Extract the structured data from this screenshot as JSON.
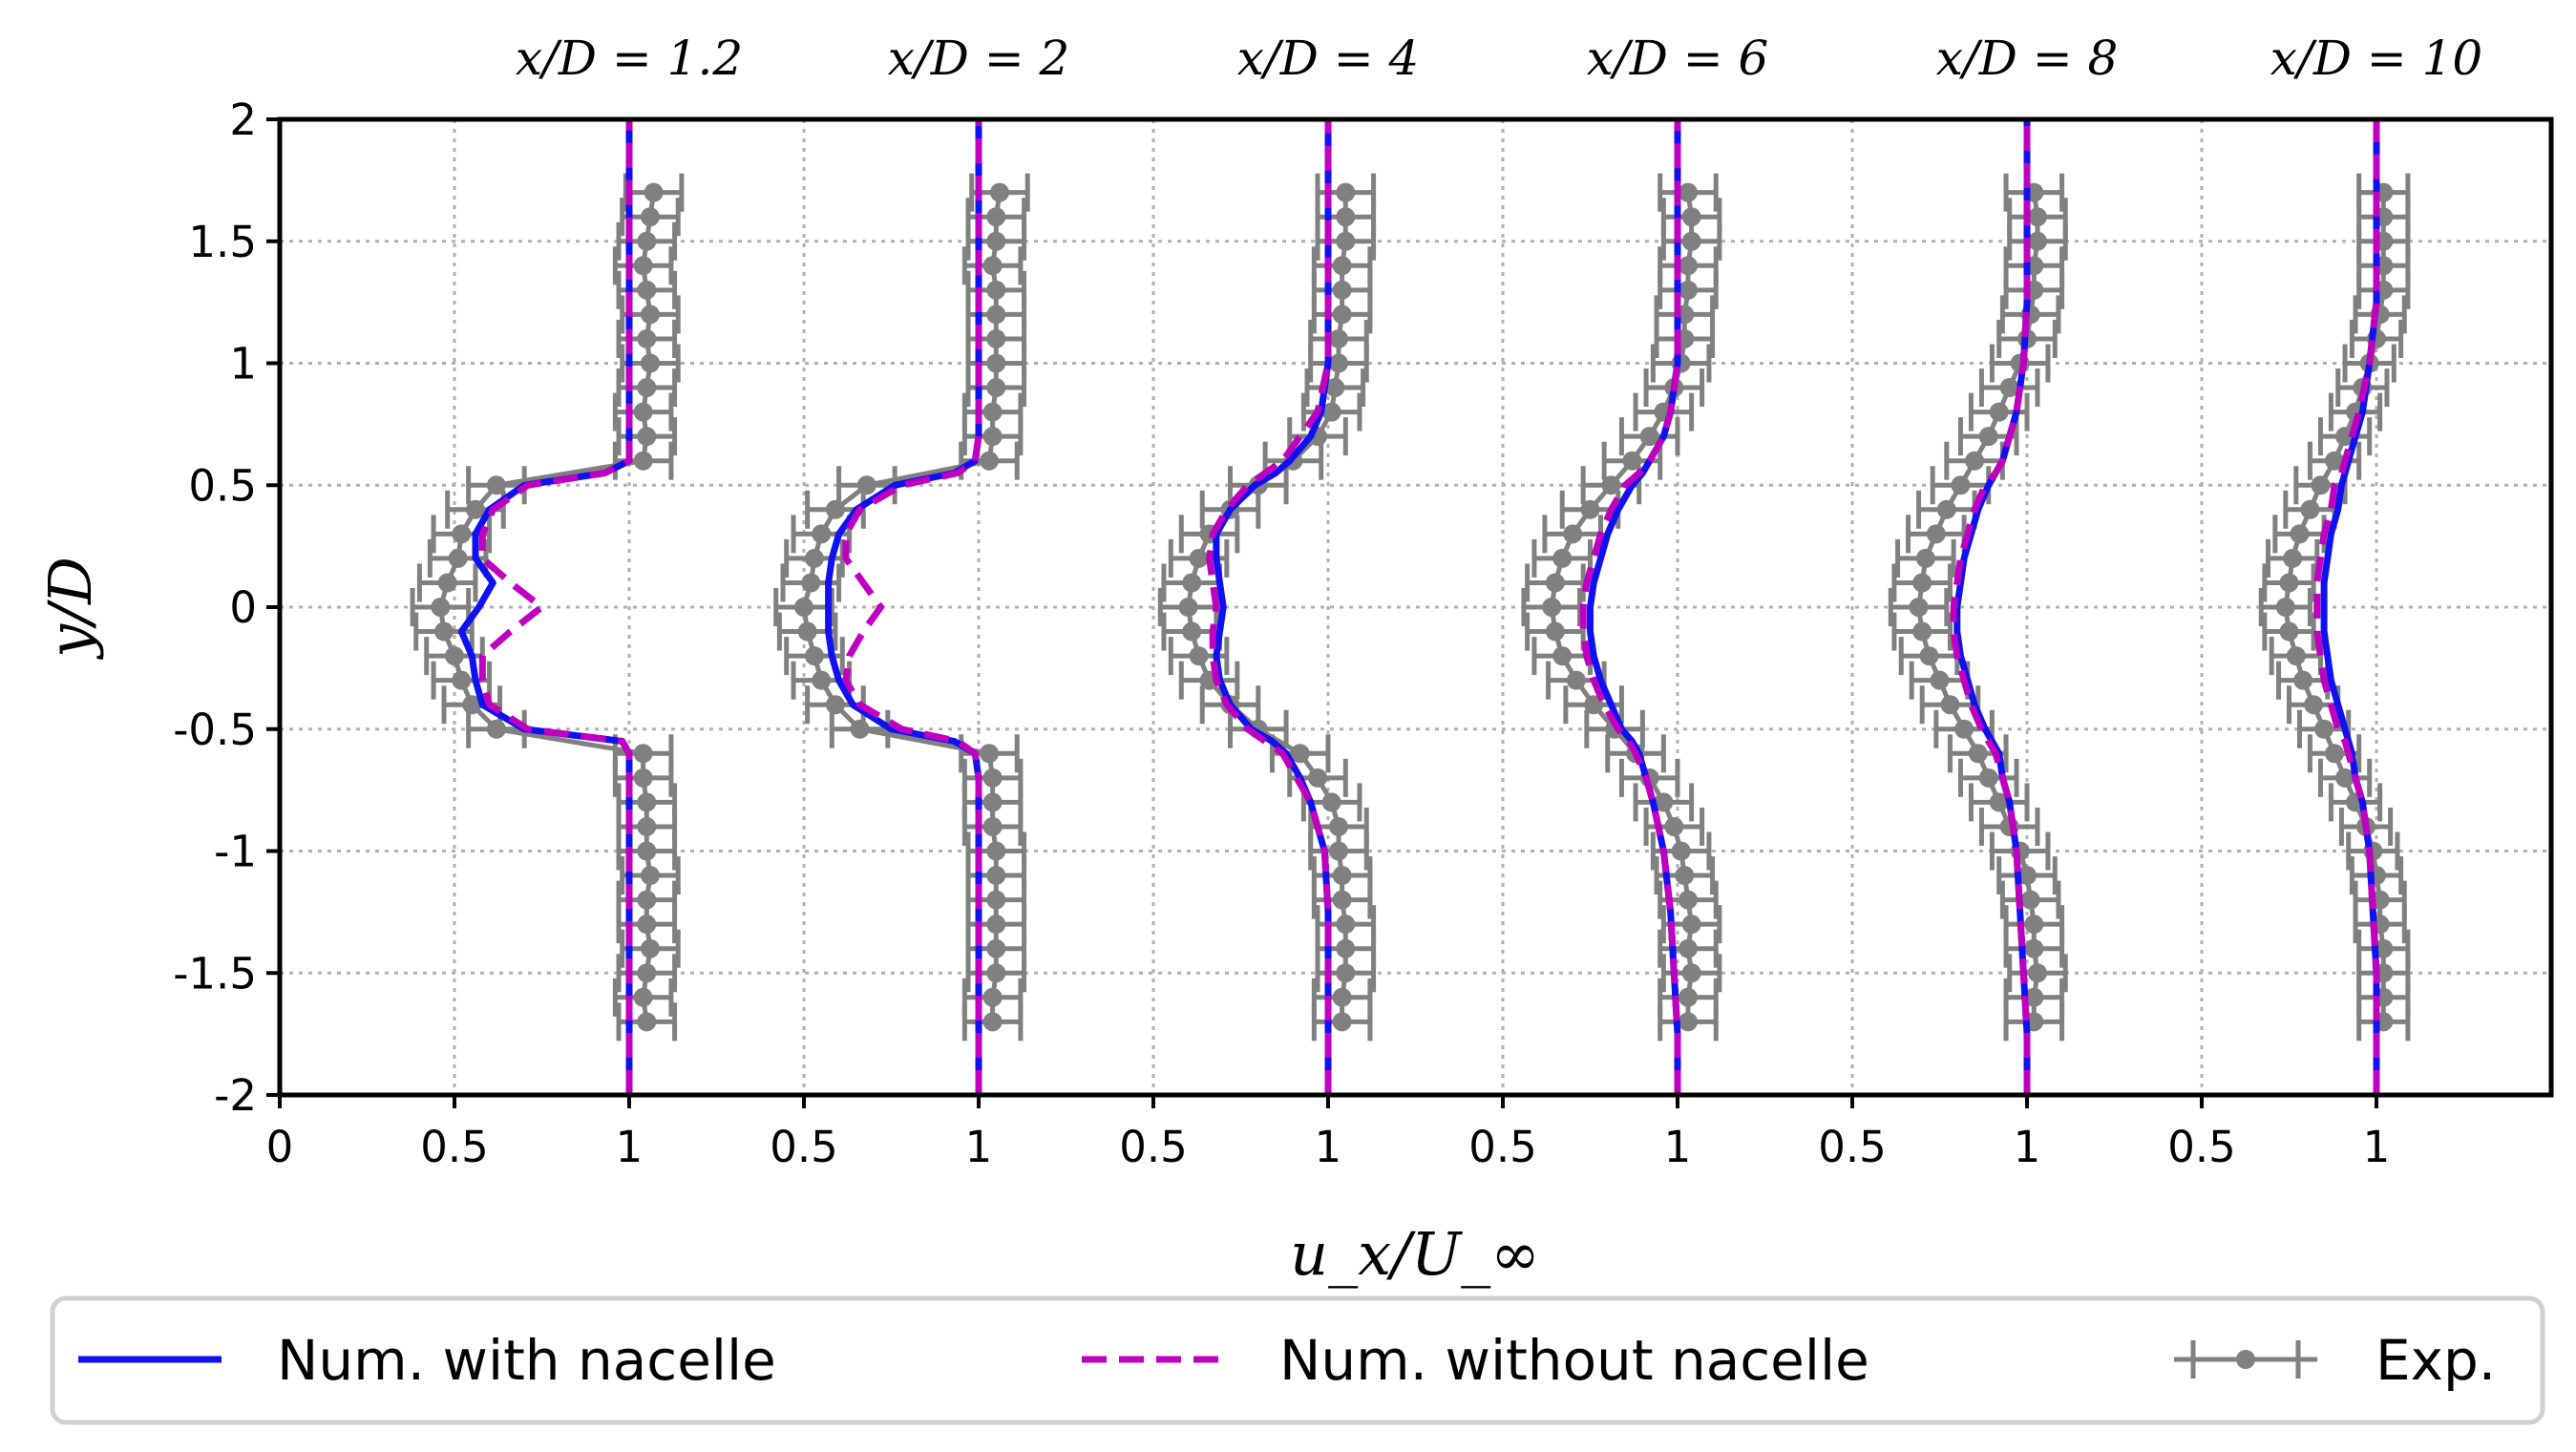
{
  "chart_data": {
    "type": "line",
    "title": "",
    "xlabel": "u_x/U_∞",
    "ylabel": "y/D",
    "ylim": [
      -2,
      2
    ],
    "yticks": [
      2,
      1.5,
      1,
      0.5,
      0,
      -0.5,
      -1,
      -1.5,
      -2
    ],
    "ytick_labels": [
      "2",
      "1.5",
      "1",
      "0.5",
      "0",
      "-0.5",
      "-1",
      "-1.5",
      "-2"
    ],
    "xtick_labels": [
      "0",
      "0.5",
      "1",
      "0.5",
      "1",
      "0.5",
      "1",
      "0.5",
      "1",
      "0.5",
      "1",
      "0.5",
      "1"
    ],
    "grid": true,
    "legend_position": "bottom",
    "legend": {
      "with_nacelle": "Num. with nacelle",
      "without_nacelle": "Num. without nacelle",
      "exp": "Exp."
    },
    "colors": {
      "with_nacelle": "#1010f0",
      "without_nacelle": "#c000c0",
      "exp": "#808080"
    },
    "y_samples": [
      -2,
      -1.75,
      -1.5,
      -1.25,
      -1,
      -0.8,
      -0.7,
      -0.6,
      -0.55,
      -0.5,
      -0.4,
      -0.3,
      -0.2,
      -0.1,
      0,
      0.1,
      0.2,
      0.3,
      0.4,
      0.5,
      0.55,
      0.6,
      0.7,
      0.8,
      1,
      1.25,
      1.5,
      1.75,
      2
    ],
    "exp_y": [
      -1.7,
      -1.6,
      -1.5,
      -1.4,
      -1.3,
      -1.2,
      -1.1,
      -1.0,
      -0.9,
      -0.8,
      -0.7,
      -0.6,
      -0.5,
      -0.4,
      -0.3,
      -0.2,
      -0.1,
      0,
      0.1,
      0.2,
      0.3,
      0.4,
      0.5,
      0.6,
      0.7,
      0.8,
      0.9,
      1.0,
      1.1,
      1.2,
      1.3,
      1.4,
      1.5,
      1.6,
      1.7
    ],
    "stations": [
      {
        "label": "x/D = 1.2",
        "with_nacelle": [
          1,
          1,
          1,
          1,
          1,
          1,
          1,
          1,
          0.98,
          0.7,
          0.58,
          0.56,
          0.55,
          0.52,
          0.57,
          0.61,
          0.56,
          0.56,
          0.6,
          0.7,
          0.93,
          1,
          1,
          1,
          1,
          1,
          1,
          1,
          1
        ],
        "without_nacelle": [
          1,
          1,
          1,
          1,
          1,
          1,
          1,
          1,
          0.98,
          0.71,
          0.6,
          0.58,
          0.58,
          0.66,
          0.75,
          0.66,
          0.58,
          0.58,
          0.61,
          0.71,
          0.93,
          1,
          1,
          1,
          1,
          1,
          1,
          1,
          1
        ],
        "exp_u": [
          1.05,
          1.04,
          1.05,
          1.06,
          1.05,
          1.05,
          1.06,
          1.05,
          1.05,
          1.05,
          1.04,
          1.04,
          0.62,
          0.55,
          0.52,
          0.5,
          0.47,
          0.46,
          0.48,
          0.51,
          0.52,
          0.56,
          0.62,
          1.04,
          1.05,
          1.04,
          1.05,
          1.06,
          1.05,
          1.06,
          1.05,
          1.04,
          1.05,
          1.06,
          1.07
        ],
        "exp_err": 0.08
      },
      {
        "label": "x/D = 2",
        "with_nacelle": [
          1,
          1,
          1,
          1,
          1,
          1,
          1,
          0.99,
          0.93,
          0.75,
          0.64,
          0.6,
          0.58,
          0.57,
          0.57,
          0.57,
          0.58,
          0.6,
          0.65,
          0.76,
          0.93,
          0.99,
          1,
          1,
          1,
          1,
          1,
          1,
          1
        ],
        "without_nacelle": [
          1,
          1,
          1,
          1,
          1,
          1,
          1,
          0.99,
          0.94,
          0.78,
          0.66,
          0.62,
          0.63,
          0.67,
          0.72,
          0.67,
          0.62,
          0.62,
          0.66,
          0.78,
          0.94,
          0.99,
          1,
          1,
          1,
          1,
          1,
          1,
          1
        ],
        "exp_u": [
          1.04,
          1.04,
          1.05,
          1.05,
          1.05,
          1.05,
          1.05,
          1.05,
          1.04,
          1.04,
          1.04,
          1.03,
          0.66,
          0.59,
          0.55,
          0.53,
          0.51,
          0.5,
          0.52,
          0.53,
          0.55,
          0.59,
          0.68,
          1.03,
          1.04,
          1.04,
          1.05,
          1.05,
          1.05,
          1.05,
          1.05,
          1.04,
          1.05,
          1.05,
          1.06
        ],
        "exp_err": 0.08
      },
      {
        "label": "x/D = 4",
        "with_nacelle": [
          1,
          1,
          1,
          1,
          0.99,
          0.95,
          0.92,
          0.88,
          0.84,
          0.78,
          0.72,
          0.69,
          0.68,
          0.69,
          0.7,
          0.69,
          0.68,
          0.68,
          0.72,
          0.79,
          0.85,
          0.89,
          0.95,
          0.98,
          1,
          1,
          1,
          1,
          1
        ],
        "without_nacelle": [
          1,
          1,
          1,
          1,
          0.99,
          0.95,
          0.91,
          0.87,
          0.82,
          0.77,
          0.71,
          0.68,
          0.67,
          0.67,
          0.68,
          0.67,
          0.66,
          0.67,
          0.71,
          0.77,
          0.82,
          0.87,
          0.92,
          0.97,
          1,
          1,
          1,
          1,
          1
        ],
        "exp_u": [
          1.04,
          1.04,
          1.05,
          1.05,
          1.05,
          1.04,
          1.04,
          1.03,
          1.03,
          1.01,
          0.97,
          0.92,
          0.8,
          0.72,
          0.66,
          0.63,
          0.61,
          0.6,
          0.61,
          0.63,
          0.66,
          0.72,
          0.8,
          0.9,
          0.97,
          1.01,
          1.02,
          1.03,
          1.03,
          1.04,
          1.04,
          1.04,
          1.05,
          1.05,
          1.05
        ],
        "exp_err": 0.08
      },
      {
        "label": "x/D = 6",
        "with_nacelle": [
          1,
          1,
          0.99,
          0.98,
          0.96,
          0.93,
          0.91,
          0.89,
          0.87,
          0.84,
          0.81,
          0.78,
          0.76,
          0.75,
          0.75,
          0.76,
          0.78,
          0.8,
          0.83,
          0.87,
          0.9,
          0.92,
          0.96,
          0.98,
          1,
          1,
          1,
          1,
          1
        ],
        "without_nacelle": [
          1,
          1,
          0.99,
          0.98,
          0.96,
          0.93,
          0.91,
          0.88,
          0.86,
          0.83,
          0.79,
          0.76,
          0.74,
          0.73,
          0.73,
          0.74,
          0.76,
          0.78,
          0.81,
          0.85,
          0.89,
          0.92,
          0.96,
          0.98,
          1,
          1,
          1,
          1,
          1
        ],
        "exp_u": [
          1.03,
          1.03,
          1.04,
          1.03,
          1.04,
          1.03,
          1.02,
          1.01,
          0.99,
          0.96,
          0.92,
          0.88,
          0.82,
          0.76,
          0.71,
          0.67,
          0.65,
          0.64,
          0.65,
          0.67,
          0.7,
          0.75,
          0.81,
          0.87,
          0.92,
          0.96,
          0.99,
          1.01,
          1.02,
          1.02,
          1.03,
          1.03,
          1.04,
          1.04,
          1.03
        ],
        "exp_err": 0.08
      },
      {
        "label": "x/D = 8",
        "with_nacelle": [
          1,
          1,
          0.99,
          0.98,
          0.97,
          0.95,
          0.93,
          0.92,
          0.9,
          0.88,
          0.85,
          0.83,
          0.81,
          0.8,
          0.8,
          0.81,
          0.82,
          0.84,
          0.86,
          0.89,
          0.91,
          0.93,
          0.95,
          0.97,
          0.99,
          1,
          1,
          1,
          1
        ],
        "without_nacelle": [
          1,
          1,
          0.99,
          0.98,
          0.97,
          0.95,
          0.93,
          0.91,
          0.89,
          0.87,
          0.84,
          0.82,
          0.8,
          0.79,
          0.79,
          0.8,
          0.81,
          0.83,
          0.85,
          0.88,
          0.91,
          0.93,
          0.95,
          0.97,
          0.99,
          1,
          1,
          1,
          1
        ],
        "exp_u": [
          1.02,
          1.02,
          1.03,
          1.02,
          1.02,
          1.01,
          1.0,
          0.98,
          0.95,
          0.92,
          0.89,
          0.86,
          0.82,
          0.78,
          0.75,
          0.72,
          0.7,
          0.69,
          0.7,
          0.71,
          0.74,
          0.77,
          0.81,
          0.85,
          0.89,
          0.92,
          0.95,
          0.98,
          1.0,
          1.01,
          1.02,
          1.02,
          1.03,
          1.03,
          1.02
        ],
        "exp_err": 0.08
      },
      {
        "label": "x/D = 10",
        "with_nacelle": [
          1,
          1,
          1,
          0.99,
          0.98,
          0.96,
          0.94,
          0.93,
          0.92,
          0.91,
          0.89,
          0.87,
          0.86,
          0.85,
          0.85,
          0.85,
          0.86,
          0.87,
          0.89,
          0.9,
          0.91,
          0.92,
          0.94,
          0.96,
          0.98,
          1,
          1,
          1,
          1
        ],
        "without_nacelle": [
          1,
          1,
          1,
          0.99,
          0.98,
          0.96,
          0.94,
          0.92,
          0.91,
          0.89,
          0.87,
          0.85,
          0.84,
          0.83,
          0.83,
          0.83,
          0.84,
          0.85,
          0.87,
          0.88,
          0.9,
          0.91,
          0.93,
          0.95,
          0.98,
          1,
          1,
          1,
          1
        ],
        "exp_u": [
          1.02,
          1.02,
          1.02,
          1.02,
          1.01,
          1.01,
          1.0,
          0.99,
          0.97,
          0.94,
          0.91,
          0.88,
          0.85,
          0.82,
          0.79,
          0.77,
          0.75,
          0.74,
          0.75,
          0.76,
          0.78,
          0.81,
          0.84,
          0.88,
          0.91,
          0.94,
          0.96,
          0.98,
          1.0,
          1.01,
          1.02,
          1.02,
          1.02,
          1.02,
          1.02
        ],
        "exp_err": 0.07
      }
    ]
  }
}
